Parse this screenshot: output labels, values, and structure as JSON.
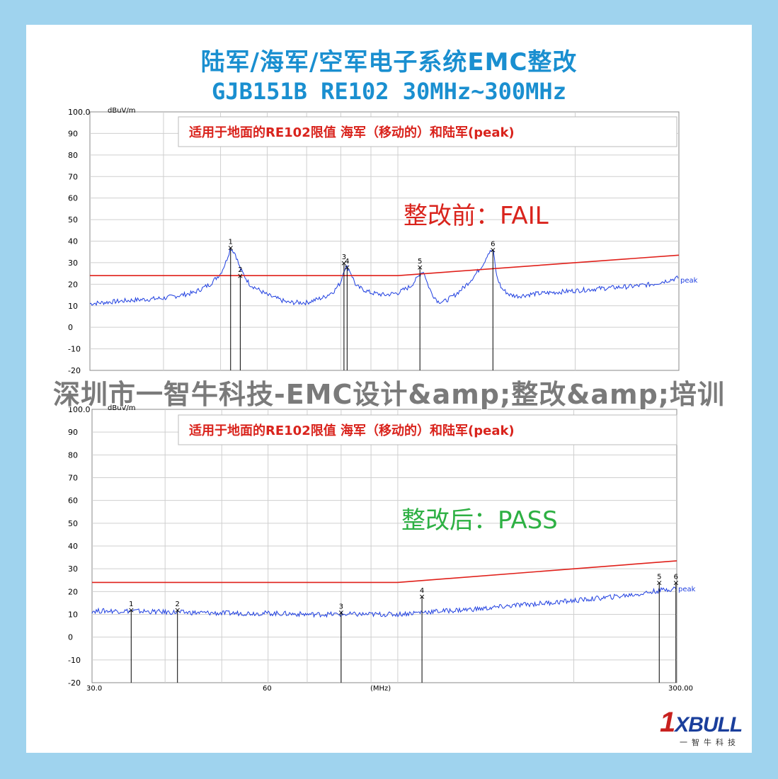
{
  "header": {
    "title_line1": "陆军/海军/空军电子系统EMC整改",
    "title_line2": "GJB151B RE102 30MHz~300MHz"
  },
  "watermark": "深圳市一智牛科技-EMC设计&amp;整改&amp;培训",
  "logo": {
    "main_prefix": "1",
    "main_text": "XBULL",
    "sub_text": "一智牛科技"
  },
  "colors": {
    "background": "#9fd3ee",
    "title": "#1a8fd0",
    "limit": "#e0201a",
    "trace": "#1f3fe0",
    "pass": "#2db043",
    "fail": "#d9231c"
  },
  "chart_data": [
    {
      "type": "line",
      "title": "适用于地面的RE102限值 海军（移动的）和陆军(peak)",
      "status": "整改前：FAIL",
      "ylabel": "dBuV/m",
      "ylim": [
        -20,
        100
      ],
      "y_ticks": [
        "100.0",
        "90",
        "80",
        "70",
        "60",
        "50",
        "40",
        "30",
        "20",
        "10",
        "0",
        "-10",
        "-20"
      ],
      "xlim": [
        30,
        300
      ],
      "x_scale": "log",
      "trace_label": "peak",
      "grid": true,
      "series": [
        {
          "name": "peak",
          "x": [
            30,
            35,
            40,
            45,
            48,
            50,
            51,
            52,
            53,
            54,
            56,
            60,
            65,
            70,
            75,
            78,
            80,
            81,
            82,
            83,
            85,
            90,
            95,
            100,
            105,
            108,
            110,
            111,
            112,
            114,
            117,
            120,
            125,
            130,
            135,
            140,
            142,
            145,
            146,
            147,
            150,
            155,
            160,
            170,
            180,
            200,
            220,
            250,
            270,
            300
          ],
          "y": [
            11,
            12.5,
            13.5,
            16,
            20,
            25,
            30,
            37,
            34,
            27,
            20,
            15,
            11.5,
            11.5,
            14,
            17,
            21,
            27,
            28,
            26,
            19,
            16,
            15,
            16,
            19,
            23,
            26,
            25,
            21,
            16,
            12,
            12,
            15,
            19,
            24,
            30,
            34,
            36,
            31,
            24,
            18,
            15,
            14.5,
            15.5,
            16,
            17,
            18,
            19,
            20,
            23
          ]
        },
        {
          "name": "limit",
          "x": [
            30,
            100,
            300
          ],
          "y": [
            24,
            24,
            33.5
          ]
        }
      ],
      "markers": [
        {
          "label": "1",
          "x": 52,
          "y": 37
        },
        {
          "label": "2",
          "x": 54,
          "y": 24
        },
        {
          "label": "3",
          "x": 81,
          "y": 30
        },
        {
          "label": "4",
          "x": 82,
          "y": 28
        },
        {
          "label": "5",
          "x": 109,
          "y": 28
        },
        {
          "label": "6",
          "x": 145,
          "y": 36
        }
      ]
    },
    {
      "type": "line",
      "title": "适用于地面的RE102限值 海军（移动的）和陆军(peak)",
      "status": "整改后：PASS",
      "ylabel": "dBuV/m",
      "ylim": [
        -20,
        100
      ],
      "y_ticks": [
        "100.0",
        "90",
        "80",
        "70",
        "60",
        "50",
        "40",
        "30",
        "20",
        "10",
        "0",
        "-10",
        "-20"
      ],
      "xlim": [
        30,
        300
      ],
      "x_scale": "log",
      "x_ticks": [
        "30.0",
        "60",
        "(MHz)",
        "300.00"
      ],
      "trace_label": "peak",
      "grid": true,
      "series": [
        {
          "name": "peak",
          "x": [
            30,
            35,
            40,
            50,
            60,
            70,
            80,
            90,
            100,
            110,
            120,
            140,
            160,
            180,
            200,
            230,
            260,
            280,
            300
          ],
          "y": [
            11.5,
            11.5,
            11,
            10.5,
            10.5,
            10,
            10,
            10,
            10,
            11,
            11.5,
            12.5,
            14,
            15,
            16,
            17.5,
            19,
            20.5,
            21.5
          ]
        },
        {
          "name": "limit",
          "x": [
            30,
            100,
            300
          ],
          "y": [
            24,
            24,
            33.5
          ]
        }
      ],
      "markers": [
        {
          "label": "1",
          "x": 35,
          "y": 12
        },
        {
          "label": "2",
          "x": 42,
          "y": 12
        },
        {
          "label": "3",
          "x": 80,
          "y": 11
        },
        {
          "label": "4",
          "x": 110,
          "y": 18
        },
        {
          "label": "5",
          "x": 280,
          "y": 24
        },
        {
          "label": "6",
          "x": 299,
          "y": 24
        }
      ]
    }
  ]
}
